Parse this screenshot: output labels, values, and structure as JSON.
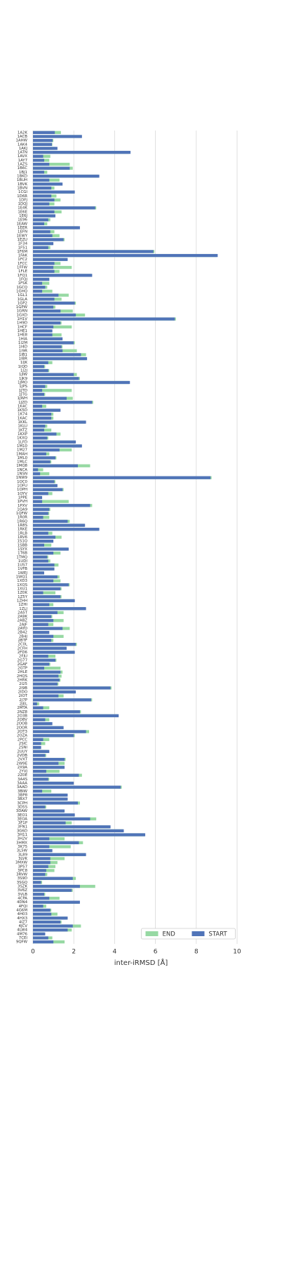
{
  "chart_data": {
    "type": "barh",
    "xlabel": "inter-iRMSD [Å]",
    "categories": [
      "1A2K",
      "1ACB",
      "1AHW",
      "1AK4",
      "1AKJ",
      "1ATN",
      "1AVX",
      "1AY7",
      "1AZS",
      "1B6C",
      "1BJ1",
      "1BKD",
      "1BUH",
      "1BVK",
      "1BVN",
      "1CGI",
      "1D6R",
      "1DFJ",
      "1DQJ",
      "1E4K",
      "1E6E",
      "1E6J",
      "1E96",
      "1EAW",
      "1EER",
      "1EFN",
      "1EWY",
      "1EZU",
      "1F34",
      "1F51",
      "1F6M",
      "1FAK",
      "1FC2",
      "1FCC",
      "1FFW",
      "1FLE",
      "1FQ1",
      "1FQJ",
      "1FSK",
      "1GCQ",
      "1GHQ",
      "1GL1",
      "1GLA",
      "1GP2",
      "1GPW",
      "1GRN",
      "1GXD",
      "1H1V",
      "1H9D",
      "1HCF",
      "1HE1",
      "1HE8",
      "1HIA",
      "1I2M",
      "1I4D",
      "1I9R",
      "1IB1",
      "1IBR",
      "1IJK",
      "1IQD",
      "1J2J",
      "1JIW",
      "1JK9",
      "1JMO",
      "1JPS",
      "1JTD",
      "1JTG",
      "1JWH",
      "1JZD",
      "1K4C",
      "1K5D",
      "1K74",
      "1KAC",
      "1KKL",
      "1KLU",
      "1KTZ",
      "1KXP",
      "1KXQ",
      "1LFD",
      "1M10",
      "1M27",
      "1MAH",
      "1ML0",
      "1MLC",
      "1MQ8",
      "1NCA",
      "1NSN",
      "1NW9",
      "1OC0",
      "1OFU",
      "1OPH",
      "1OYV",
      "1PPE",
      "1PVH",
      "1PXV",
      "1QA9",
      "1QFW",
      "1R0R",
      "1R6Q",
      "1R8S",
      "1RKE",
      "1RLB",
      "1RV6",
      "1S1Q",
      "1SBB",
      "1SYX",
      "1T6B",
      "1TMQ",
      "1UDI",
      "1US7",
      "1VFB",
      "1WEJ",
      "1WQ1",
      "1XD3",
      "1XQS",
      "1XU1",
      "1Z0K",
      "1Z5Y",
      "1ZHH",
      "1ZHI",
      "1ZLI",
      "2A5T",
      "2A9K",
      "2ABZ",
      "2AJF",
      "2AYO",
      "2B42",
      "2B4J",
      "2BTF",
      "2C0L",
      "2CFH",
      "2FD6",
      "2FJU",
      "2G77",
      "2GAF",
      "2GTP",
      "2HLE",
      "2HQS",
      "2HRK",
      "2I25",
      "2I9B",
      "2IDO",
      "2IOT",
      "2J7P",
      "2JEL",
      "2MTA",
      "2NZ8",
      "2O3B",
      "2O8V",
      "2OOB",
      "2OOR",
      "2OT3",
      "2OZA",
      "2PCC",
      "2SIC",
      "2SNI",
      "2UUY",
      "2VDB",
      "2VXT",
      "2W9E",
      "2X9A",
      "2YVJ",
      "2Z0E",
      "3A4S",
      "3AAA",
      "3AAD",
      "3BIW",
      "3BP8",
      "3BX7",
      "3CPH",
      "3D5S",
      "3DAW",
      "3EO1",
      "3EOA",
      "3F1P",
      "3FN1",
      "3G6D",
      "3H11",
      "3H2V",
      "3HMX",
      "3K75",
      "3L5W",
      "3L89",
      "3LVK",
      "3MXW",
      "3P57",
      "3PC8",
      "3RVW",
      "3S9D",
      "3SGQ",
      "3SZK",
      "3V6Z",
      "3VLB",
      "4CPA",
      "4DN4",
      "4FQI",
      "4G6M",
      "4H03",
      "4HX3",
      "4IZ7",
      "4JCV",
      "4LW4",
      "4M76",
      "7CEI",
      "9QFW"
    ],
    "series": [
      {
        "name": "END",
        "color": "#97d9a3",
        "values": [
          1.37,
          2.35,
          1.0,
          0.95,
          1.1,
          4.7,
          0.85,
          0.8,
          1.8,
          1.95,
          0.7,
          3.2,
          1.3,
          1.4,
          1.05,
          2.0,
          1.15,
          1.35,
          1.05,
          3.1,
          1.4,
          1.05,
          0.85,
          0.7,
          2.2,
          1.05,
          1.3,
          1.55,
          0.95,
          0.85,
          5.95,
          9.0,
          1.65,
          1.35,
          1.9,
          1.3,
          2.85,
          0.8,
          0.8,
          0.7,
          0.95,
          1.75,
          1.4,
          2.1,
          1.1,
          1.95,
          2.55,
          7.0,
          1.4,
          1.9,
          0.9,
          1.4,
          1.4,
          2.05,
          1.45,
          2.15,
          2.6,
          2.6,
          0.95,
          0.6,
          0.8,
          2.15,
          2.3,
          4.7,
          0.7,
          1.9,
          0.6,
          1.95,
          2.95,
          0.65,
          1.3,
          1.0,
          1.0,
          2.55,
          0.7,
          0.9,
          1.35,
          0.75,
          2.05,
          2.35,
          1.9,
          0.8,
          1.15,
          0.9,
          2.8,
          0.5,
          0.8,
          8.75,
          1.1,
          1.15,
          1.5,
          0.95,
          0.4,
          1.75,
          2.9,
          0.85,
          0.8,
          0.8,
          1.8,
          2.5,
          3.2,
          0.95,
          1.4,
          0.95,
          0.9,
          1.7,
          1.35,
          0.75,
          0.85,
          1.25,
          1.0,
          0.5,
          1.3,
          1.35,
          1.8,
          1.4,
          1.1,
          1.4,
          2.0,
          1.0,
          2.55,
          1.5,
          0.95,
          1.5,
          1.0,
          1.8,
          0.75,
          1.5,
          1.0,
          2.15,
          1.6,
          2.0,
          1.1,
          1.15,
          0.85,
          1.35,
          1.45,
          1.4,
          1.35,
          1.25,
          3.85,
          2.05,
          1.5,
          2.9,
          0.3,
          0.8,
          2.35,
          4.15,
          0.8,
          0.9,
          1.45,
          2.75,
          2.05,
          0.8,
          0.6,
          0.35,
          0.75,
          0.65,
          1.6,
          1.55,
          1.5,
          1.3,
          2.4,
          0.8,
          1.95,
          4.35,
          0.9,
          1.65,
          1.65,
          2.3,
          0.65,
          1.5,
          2.0,
          3.1,
          1.9,
          3.75,
          4.4,
          5.45,
          1.55,
          2.45,
          1.85,
          0.9,
          2.55,
          1.55,
          1.2,
          1.1,
          1.05,
          0.7,
          2.1,
          0.45,
          3.05,
          1.95,
          0.6,
          1.3,
          2.25,
          0.65,
          0.9,
          1.2,
          1.65,
          1.4,
          2.35,
          1.9,
          0.55,
          0.95,
          1.55
        ]
      },
      {
        "name": "START",
        "color": "#5074b8",
        "values": [
          1.07,
          2.4,
          0.96,
          0.93,
          1.2,
          4.78,
          0.5,
          0.55,
          0.8,
          1.8,
          0.55,
          3.25,
          0.8,
          1.45,
          0.9,
          2.05,
          0.9,
          1.05,
          0.8,
          3.05,
          1.05,
          1.1,
          0.75,
          0.55,
          2.3,
          0.85,
          0.95,
          1.5,
          1.0,
          0.75,
          5.9,
          9.05,
          1.7,
          1.05,
          1.0,
          1.05,
          2.9,
          0.8,
          0.45,
          0.6,
          0.45,
          1.25,
          1.05,
          2.05,
          1.0,
          1.35,
          2.1,
          6.95,
          1.35,
          1.0,
          0.95,
          0.95,
          1.45,
          2.0,
          1.4,
          1.45,
          2.35,
          2.65,
          0.75,
          0.55,
          0.75,
          2.0,
          2.25,
          4.75,
          0.6,
          0.45,
          0.55,
          1.65,
          2.9,
          0.45,
          1.35,
          0.9,
          0.9,
          2.6,
          0.6,
          0.55,
          1.15,
          0.7,
          2.1,
          2.4,
          1.3,
          0.65,
          1.1,
          0.85,
          2.2,
          0.25,
          0.35,
          8.7,
          1.05,
          1.2,
          1.45,
          0.75,
          0.45,
          0.45,
          2.8,
          0.8,
          0.75,
          0.5,
          1.7,
          2.55,
          3.25,
          0.75,
          1.1,
          1.0,
          0.55,
          1.75,
          1.0,
          0.7,
          0.75,
          1.05,
          1.05,
          0.55,
          1.2,
          1.0,
          1.75,
          1.35,
          0.5,
          1.35,
          2.05,
          0.8,
          2.6,
          1.2,
          0.9,
          1.0,
          0.75,
          1.45,
          0.8,
          1.0,
          0.9,
          2.1,
          1.65,
          2.05,
          0.75,
          1.1,
          0.8,
          0.55,
          1.35,
          1.25,
          1.3,
          1.2,
          3.8,
          2.1,
          1.25,
          2.85,
          0.2,
          0.5,
          2.3,
          4.2,
          0.6,
          0.95,
          1.5,
          2.6,
          2.0,
          0.5,
          0.4,
          0.4,
          0.8,
          0.6,
          1.55,
          1.25,
          1.55,
          0.65,
          2.25,
          0.75,
          2.0,
          4.3,
          0.45,
          1.7,
          1.7,
          2.2,
          0.6,
          1.55,
          2.05,
          2.8,
          1.6,
          3.8,
          4.45,
          5.5,
          0.8,
          2.25,
          0.8,
          0.95,
          2.6,
          0.85,
          0.85,
          0.75,
          0.65,
          0.6,
          1.95,
          0.4,
          2.3,
          1.9,
          0.55,
          0.8,
          2.3,
          0.5,
          0.85,
          0.9,
          1.7,
          1.35,
          1.95,
          1.7,
          0.6,
          0.75,
          1.0
        ]
      }
    ],
    "xlim": [
      0,
      10.6
    ],
    "xticks": [
      0,
      2,
      4,
      6,
      8,
      10
    ],
    "grid": true,
    "legend": "lower right"
  }
}
